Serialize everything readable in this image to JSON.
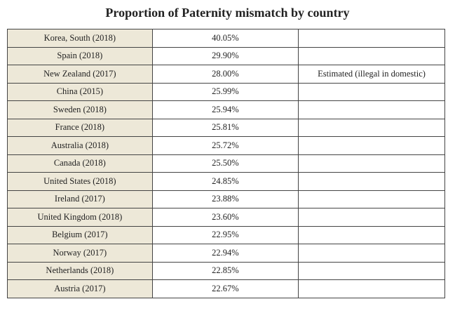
{
  "title": "Proportion of Paternity mismatch by country",
  "table": {
    "rows": [
      [
        "Korea, South (2018)",
        "40.05%"
      ],
      [
        "Spain (2018)",
        "29.90%"
      ],
      [
        "New Zealand (2017)",
        "28.00%",
        "Estimated (illegal in domestic)"
      ],
      [
        "China (2015)",
        "25.99%"
      ],
      [
        "Sweden (2018)",
        "25.94%"
      ],
      [
        "France (2018)",
        "25.81%"
      ],
      [
        "Australia (2018)",
        "25.72%"
      ],
      [
        "Canada (2018)",
        "25.50%"
      ],
      [
        "United States (2018)",
        "24.85%"
      ],
      [
        "Ireland (2017)",
        "23.88%"
      ],
      [
        "United Kingdom (2018)",
        "23.60%"
      ],
      [
        "Belgium (2017)",
        "22.95%"
      ],
      [
        "Norway (2017)",
        "22.94%"
      ],
      [
        "Netherlands (2018)",
        "22.85%"
      ],
      [
        "Austria (2017)",
        "22.67%"
      ]
    ]
  }
}
